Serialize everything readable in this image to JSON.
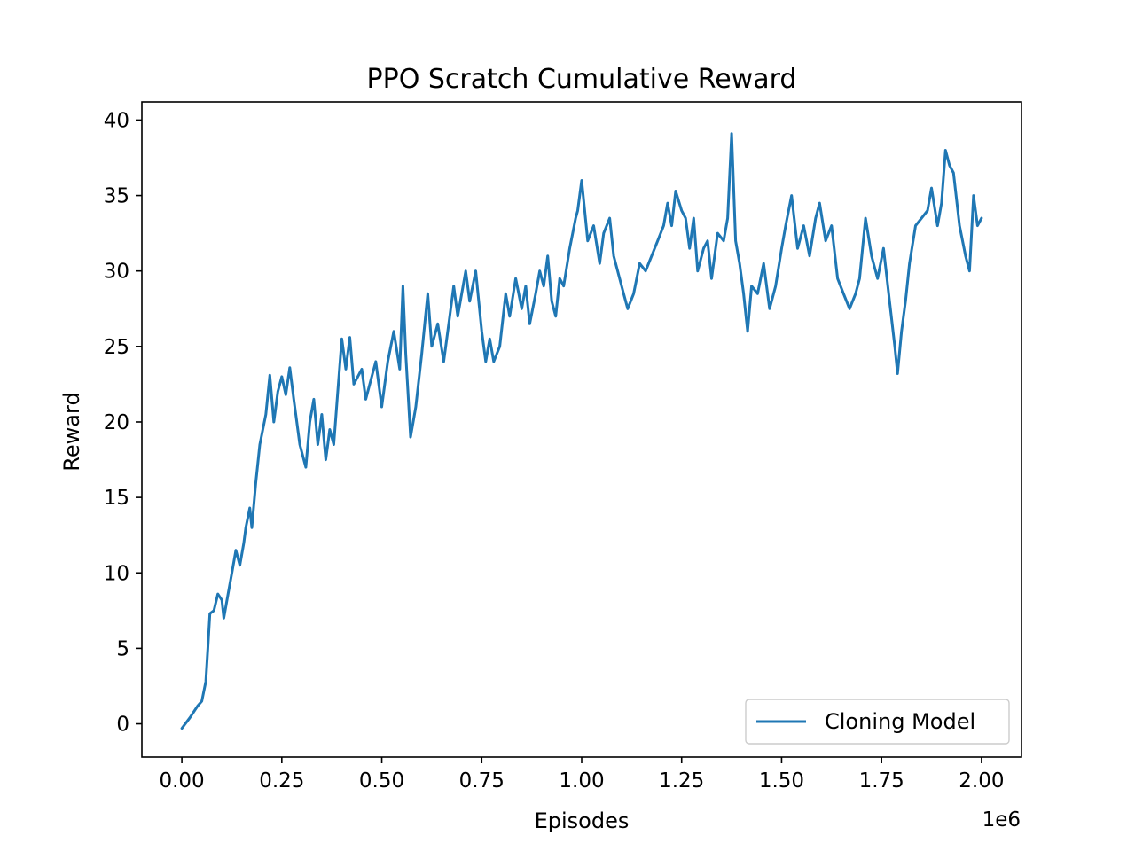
{
  "chart_data": {
    "type": "line",
    "title": "PPO Scratch Cumulative Reward",
    "xlabel": "Episodes",
    "ylabel": "Reward",
    "x_offset_label": "1e6",
    "x_scale": 1000000,
    "xlim": [
      -100000,
      2100000
    ],
    "ylim": [
      -2.2,
      41.2
    ],
    "x_ticks": [
      0,
      250000,
      500000,
      750000,
      1000000,
      1250000,
      1500000,
      1750000,
      2000000
    ],
    "x_tick_labels": [
      "0.00",
      "0.25",
      "0.50",
      "0.75",
      "1.00",
      "1.25",
      "1.50",
      "1.75",
      "2.00"
    ],
    "y_ticks": [
      0,
      5,
      10,
      15,
      20,
      25,
      30,
      35,
      40
    ],
    "y_tick_labels": [
      "0",
      "5",
      "10",
      "15",
      "20",
      "25",
      "30",
      "35",
      "40"
    ],
    "grid": false,
    "legend": {
      "position": "lower-right",
      "entries": [
        "Cloning Model"
      ]
    },
    "colors": {
      "series": "#1f77b4"
    },
    "series": [
      {
        "name": "Cloning Model",
        "points": [
          [
            0,
            -0.3
          ],
          [
            20000,
            0.4
          ],
          [
            40000,
            1.2
          ],
          [
            50000,
            1.5
          ],
          [
            60000,
            2.8
          ],
          [
            65000,
            5.0
          ],
          [
            70000,
            7.3
          ],
          [
            80000,
            7.5
          ],
          [
            90000,
            8.6
          ],
          [
            100000,
            8.2
          ],
          [
            105000,
            7.0
          ],
          [
            115000,
            8.5
          ],
          [
            125000,
            10.0
          ],
          [
            135000,
            11.5
          ],
          [
            145000,
            10.5
          ],
          [
            155000,
            12.0
          ],
          [
            160000,
            13.0
          ],
          [
            170000,
            14.3
          ],
          [
            175000,
            13.0
          ],
          [
            185000,
            16.0
          ],
          [
            195000,
            18.5
          ],
          [
            210000,
            20.5
          ],
          [
            220000,
            23.1
          ],
          [
            230000,
            20.0
          ],
          [
            240000,
            22.0
          ],
          [
            250000,
            23.0
          ],
          [
            260000,
            21.8
          ],
          [
            270000,
            23.6
          ],
          [
            280000,
            21.5
          ],
          [
            295000,
            18.5
          ],
          [
            310000,
            17.0
          ],
          [
            320000,
            20.0
          ],
          [
            330000,
            21.5
          ],
          [
            340000,
            18.5
          ],
          [
            350000,
            20.5
          ],
          [
            360000,
            17.5
          ],
          [
            370000,
            19.5
          ],
          [
            380000,
            18.5
          ],
          [
            390000,
            22.0
          ],
          [
            400000,
            25.5
          ],
          [
            410000,
            23.5
          ],
          [
            420000,
            25.6
          ],
          [
            430000,
            22.5
          ],
          [
            450000,
            23.5
          ],
          [
            460000,
            21.5
          ],
          [
            470000,
            22.5
          ],
          [
            485000,
            24.0
          ],
          [
            500000,
            21.0
          ],
          [
            515000,
            24.0
          ],
          [
            530000,
            26.0
          ],
          [
            545000,
            23.5
          ],
          [
            553000,
            29.0
          ],
          [
            560000,
            24.5
          ],
          [
            572000,
            19.0
          ],
          [
            585000,
            21.0
          ],
          [
            600000,
            24.5
          ],
          [
            615000,
            28.5
          ],
          [
            625000,
            25.0
          ],
          [
            640000,
            26.5
          ],
          [
            655000,
            24.0
          ],
          [
            670000,
            27.0
          ],
          [
            680000,
            29.0
          ],
          [
            690000,
            27.0
          ],
          [
            710000,
            30.0
          ],
          [
            720000,
            28.0
          ],
          [
            735000,
            30.0
          ],
          [
            750000,
            26.0
          ],
          [
            760000,
            24.0
          ],
          [
            770000,
            25.5
          ],
          [
            780000,
            24.0
          ],
          [
            795000,
            25.0
          ],
          [
            810000,
            28.5
          ],
          [
            820000,
            27.0
          ],
          [
            835000,
            29.5
          ],
          [
            850000,
            27.5
          ],
          [
            860000,
            29.0
          ],
          [
            870000,
            26.5
          ],
          [
            885000,
            28.5
          ],
          [
            895000,
            30.0
          ],
          [
            905000,
            29.0
          ],
          [
            915000,
            31.0
          ],
          [
            925000,
            28.0
          ],
          [
            935000,
            27.0
          ],
          [
            945000,
            29.5
          ],
          [
            955000,
            29.0
          ],
          [
            970000,
            31.5
          ],
          [
            985000,
            33.5
          ],
          [
            990000,
            34.0
          ],
          [
            1000000,
            36.0
          ],
          [
            1015000,
            32.0
          ],
          [
            1030000,
            33.0
          ],
          [
            1045000,
            30.5
          ],
          [
            1055000,
            32.5
          ],
          [
            1070000,
            33.5
          ],
          [
            1080000,
            31.0
          ],
          [
            1095000,
            29.5
          ],
          [
            1105000,
            28.5
          ],
          [
            1115000,
            27.5
          ],
          [
            1130000,
            28.5
          ],
          [
            1145000,
            30.5
          ],
          [
            1160000,
            30.0
          ],
          [
            1175000,
            31.0
          ],
          [
            1190000,
            32.0
          ],
          [
            1205000,
            33.0
          ],
          [
            1215000,
            34.5
          ],
          [
            1225000,
            33.0
          ],
          [
            1235000,
            35.3
          ],
          [
            1250000,
            34.0
          ],
          [
            1260000,
            33.5
          ],
          [
            1270000,
            31.5
          ],
          [
            1280000,
            33.5
          ],
          [
            1290000,
            30.0
          ],
          [
            1305000,
            31.5
          ],
          [
            1315000,
            32.0
          ],
          [
            1325000,
            29.5
          ],
          [
            1340000,
            32.5
          ],
          [
            1355000,
            32.0
          ],
          [
            1365000,
            33.5
          ],
          [
            1375000,
            39.1
          ],
          [
            1385000,
            32.0
          ],
          [
            1395000,
            30.5
          ],
          [
            1405000,
            28.5
          ],
          [
            1415000,
            26.0
          ],
          [
            1425000,
            29.0
          ],
          [
            1440000,
            28.5
          ],
          [
            1455000,
            30.5
          ],
          [
            1470000,
            27.5
          ],
          [
            1485000,
            29.0
          ],
          [
            1500000,
            31.5
          ],
          [
            1510000,
            33.0
          ],
          [
            1525000,
            35.0
          ],
          [
            1540000,
            31.5
          ],
          [
            1555000,
            33.0
          ],
          [
            1570000,
            31.0
          ],
          [
            1585000,
            33.5
          ],
          [
            1595000,
            34.5
          ],
          [
            1610000,
            32.0
          ],
          [
            1625000,
            33.0
          ],
          [
            1640000,
            29.5
          ],
          [
            1655000,
            28.5
          ],
          [
            1670000,
            27.5
          ],
          [
            1685000,
            28.5
          ],
          [
            1695000,
            29.5
          ],
          [
            1710000,
            33.5
          ],
          [
            1725000,
            31.0
          ],
          [
            1740000,
            29.5
          ],
          [
            1755000,
            31.5
          ],
          [
            1770000,
            28.0
          ],
          [
            1783000,
            25.0
          ],
          [
            1790000,
            23.2
          ],
          [
            1800000,
            26.0
          ],
          [
            1810000,
            28.0
          ],
          [
            1820000,
            30.5
          ],
          [
            1835000,
            33.0
          ],
          [
            1850000,
            33.5
          ],
          [
            1865000,
            34.0
          ],
          [
            1875000,
            35.5
          ],
          [
            1890000,
            33.0
          ],
          [
            1900000,
            34.5
          ],
          [
            1910000,
            38.0
          ],
          [
            1920000,
            37.0
          ],
          [
            1930000,
            36.5
          ],
          [
            1945000,
            33.0
          ],
          [
            1960000,
            31.0
          ],
          [
            1970000,
            30.0
          ],
          [
            1980000,
            35.0
          ],
          [
            1990000,
            33.0
          ],
          [
            2000000,
            33.5
          ]
        ]
      }
    ]
  }
}
